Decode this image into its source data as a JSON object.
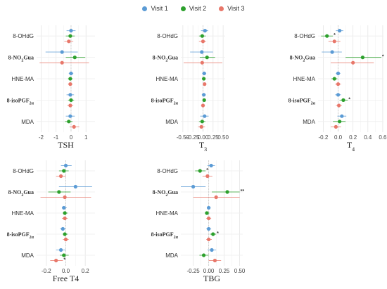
{
  "legend": {
    "items": [
      {
        "name": "Visit 1",
        "color": "#5b9bd5"
      },
      {
        "name": "Visit 2",
        "color": "#2ca02c"
      },
      {
        "name": "Visit 3",
        "color": "#e8776a"
      }
    ]
  },
  "chart_data": [
    {
      "type": "forest",
      "title": "TSH",
      "categories": [
        "8-OHdG",
        "8-NO2Gua",
        "HNE-MA",
        "8-isoPGF2a",
        "MDA"
      ],
      "xlim": [
        -2.3,
        1.6
      ],
      "xticks": [
        -2,
        -1,
        0,
        1
      ],
      "series": [
        {
          "name": "Visit 1",
          "estimates": [
            0.0,
            -0.6,
            0.0,
            -0.05,
            -0.05
          ],
          "lower": [
            -0.3,
            -1.7,
            -0.15,
            -0.3,
            -0.35
          ],
          "upper": [
            0.3,
            0.45,
            0.15,
            0.2,
            0.25
          ]
        },
        {
          "name": "Visit 2",
          "estimates": [
            -0.05,
            0.25,
            -0.05,
            0.0,
            -0.15
          ],
          "lower": [
            -0.35,
            -0.35,
            -0.2,
            -0.2,
            -0.4
          ],
          "upper": [
            0.25,
            0.95,
            0.1,
            0.2,
            0.1
          ]
        },
        {
          "name": "Visit 3",
          "estimates": [
            -0.15,
            -0.6,
            -0.05,
            -0.05,
            0.2
          ],
          "lower": [
            -0.45,
            -2.1,
            -0.2,
            -0.25,
            -0.1
          ],
          "upper": [
            0.15,
            1.2,
            0.1,
            0.15,
            0.55
          ]
        }
      ]
    },
    {
      "type": "forest",
      "title": "T3",
      "categories": [
        "8-OHdG",
        "8-NO2Gua",
        "HNE-MA",
        "8-isoPGF2a",
        "MDA"
      ],
      "xlim": [
        -0.55,
        0.55
      ],
      "xticks": [
        -0.5,
        -0.25,
        0.0,
        0.25,
        0.5
      ],
      "xtick_labels": [
        "-0.50",
        "-0.25",
        "0.00",
        "0.25",
        "0.50"
      ],
      "series": [
        {
          "name": "Visit 1",
          "estimates": [
            0.05,
            -0.03,
            0.03,
            0.02,
            0.04
          ],
          "lower": [
            -0.05,
            -0.32,
            -0.02,
            -0.03,
            -0.07
          ],
          "upper": [
            0.13,
            0.25,
            0.08,
            0.07,
            0.14
          ]
        },
        {
          "name": "Visit 2",
          "estimates": [
            -0.02,
            0.1,
            0.02,
            0.03,
            -0.02
          ],
          "lower": [
            -0.1,
            -0.08,
            -0.02,
            -0.01,
            -0.1
          ],
          "upper": [
            0.07,
            0.3,
            0.06,
            0.07,
            0.06
          ]
        },
        {
          "name": "Visit 3",
          "estimates": [
            0.0,
            -0.02,
            0.04,
            0.0,
            -0.04
          ],
          "lower": [
            -0.1,
            -0.48,
            0.0,
            -0.05,
            -0.12
          ],
          "upper": [
            0.08,
            0.48,
            0.08,
            0.05,
            0.05
          ]
        }
      ]
    },
    {
      "type": "forest",
      "title": "T4",
      "categories": [
        "8-OHdG",
        "8-NO2Gua",
        "HNE-MA",
        "8-isoPGF2a",
        "MDA"
      ],
      "xlim": [
        -0.27,
        0.61
      ],
      "xticks": [
        -0.2,
        0.0,
        0.2,
        0.4,
        0.6
      ],
      "xtick_labels": [
        "-0.2",
        "0.0",
        "0.2",
        "0.4",
        "0.6"
      ],
      "series": [
        {
          "name": "Visit 1",
          "estimates": [
            0.02,
            -0.08,
            0.0,
            0.0,
            0.05
          ],
          "lower": [
            -0.03,
            -0.22,
            -0.03,
            -0.04,
            -0.01
          ],
          "upper": [
            0.07,
            0.05,
            0.03,
            0.04,
            0.11
          ]
        },
        {
          "name": "Visit 2",
          "estimates": [
            -0.15,
            0.33,
            -0.05,
            0.07,
            0.02
          ],
          "lower": [
            -0.23,
            0.1,
            -0.09,
            0.02,
            -0.07
          ],
          "upper": [
            -0.07,
            0.58,
            -0.01,
            0.13,
            0.1
          ]
        },
        {
          "name": "Visit 3",
          "estimates": [
            -0.05,
            0.2,
            0.0,
            0.01,
            -0.03
          ],
          "lower": [
            -0.13,
            -0.1,
            -0.04,
            -0.03,
            -0.1
          ],
          "upper": [
            0.03,
            0.48,
            0.04,
            0.05,
            0.04
          ]
        }
      ],
      "significance": [
        {
          "category": "8-OHdG",
          "series": "Visit 2",
          "label": "*"
        },
        {
          "category": "8-NO2Gua",
          "series": "Visit 2",
          "label": "*"
        },
        {
          "category": "8-isoPGF2a",
          "series": "Visit 2",
          "label": "*"
        }
      ]
    },
    {
      "type": "forest",
      "title": "Free T4",
      "categories": [
        "8-OHdG",
        "8-NO2Gua",
        "HNE-MA",
        "8-isoPGF2a",
        "MDA"
      ],
      "xlim": [
        -0.3,
        0.3
      ],
      "xticks": [
        -0.2,
        0.0,
        0.2
      ],
      "xtick_labels": [
        "-0.2",
        "0.0",
        "0.2"
      ],
      "series": [
        {
          "name": "Visit 1",
          "estimates": [
            0.0,
            0.1,
            -0.02,
            -0.03,
            -0.05
          ],
          "lower": [
            -0.05,
            -0.07,
            -0.04,
            -0.06,
            -0.1
          ],
          "upper": [
            0.06,
            0.27,
            0.01,
            0.0,
            0.0
          ]
        },
        {
          "name": "Visit 2",
          "estimates": [
            -0.02,
            -0.07,
            -0.01,
            -0.01,
            -0.02
          ],
          "lower": [
            -0.07,
            -0.18,
            -0.03,
            -0.03,
            -0.06
          ],
          "upper": [
            0.03,
            0.05,
            0.02,
            0.02,
            0.03
          ]
        },
        {
          "name": "Visit 3",
          "estimates": [
            -0.05,
            -0.01,
            -0.01,
            0.0,
            -0.1
          ],
          "lower": [
            -0.1,
            -0.26,
            -0.04,
            -0.03,
            -0.16
          ],
          "upper": [
            0.0,
            0.26,
            0.02,
            0.03,
            -0.03
          ]
        }
      ],
      "significance": [
        {
          "category": "MDA",
          "series": "Visit 3",
          "label": "*"
        }
      ]
    },
    {
      "type": "forest",
      "title": "TBG",
      "categories": [
        "8-OHdG",
        "8-NO2Gua",
        "HNE-MA",
        "8-isoPGF2a",
        "MDA"
      ],
      "xlim": [
        -0.45,
        0.55
      ],
      "xticks": [
        -0.25,
        0.0,
        0.25,
        0.5
      ],
      "xtick_labels": [
        "-0.25",
        "0.00",
        "0.25",
        "0.50"
      ],
      "series": [
        {
          "name": "Visit 1",
          "estimates": [
            0.04,
            -0.25,
            0.0,
            0.0,
            0.05
          ],
          "lower": [
            -0.02,
            -0.45,
            -0.03,
            -0.04,
            -0.02
          ],
          "upper": [
            0.1,
            -0.05,
            0.03,
            0.04,
            0.12
          ]
        },
        {
          "name": "Visit 2",
          "estimates": [
            -0.14,
            0.3,
            -0.03,
            0.07,
            -0.08
          ],
          "lower": [
            -0.22,
            0.05,
            -0.06,
            0.02,
            -0.15
          ],
          "upper": [
            -0.05,
            0.5,
            0.01,
            0.12,
            0.0
          ]
        },
        {
          "name": "Visit 3",
          "estimates": [
            -0.02,
            0.12,
            0.0,
            0.0,
            0.1
          ],
          "lower": [
            -0.1,
            -0.25,
            -0.04,
            -0.04,
            0.0
          ],
          "upper": [
            0.06,
            0.5,
            0.04,
            0.05,
            0.2
          ]
        }
      ],
      "significance": [
        {
          "category": "8-OHdG",
          "series": "Visit 2",
          "label": "*"
        },
        {
          "category": "8-NO2Gua",
          "series": "Visit 2",
          "label": "**"
        },
        {
          "category": "8-isoPGF2a",
          "series": "Visit 2",
          "label": "*"
        }
      ]
    }
  ]
}
